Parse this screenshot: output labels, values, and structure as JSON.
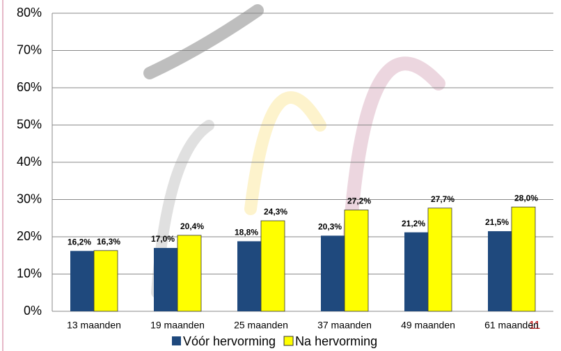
{
  "chart_data": {
    "type": "bar",
    "categories": [
      "13 maanden",
      "19 maanden",
      "25 maanden",
      "37 maanden",
      "49 maanden",
      "61 maanden"
    ],
    "series": [
      {
        "name": "Vóór hervorming",
        "color": "#1f497d",
        "values": [
          16.2,
          17.0,
          18.8,
          20.3,
          21.2,
          21.5
        ],
        "value_labels": [
          "16,2%",
          "17,0%",
          "18,8%",
          "20,3%",
          "21,2%",
          "21,5%"
        ]
      },
      {
        "name": "Na hervorming",
        "color": "#ffff00",
        "values": [
          16.3,
          20.4,
          24.3,
          27.2,
          27.7,
          28.0
        ],
        "value_labels": [
          "16,3%",
          "20,4%",
          "24,3%",
          "27,2%",
          "27,7%",
          "28,0%"
        ]
      }
    ],
    "ylim": [
      0,
      80
    ],
    "yticks": [
      {
        "value": 0,
        "label": "0%"
      },
      {
        "value": 10,
        "label": "10%"
      },
      {
        "value": 20,
        "label": "20%"
      },
      {
        "value": 30,
        "label": "30%"
      },
      {
        "value": 40,
        "label": "40%"
      },
      {
        "value": 50,
        "label": "50%"
      },
      {
        "value": 60,
        "label": "60%"
      },
      {
        "value": 70,
        "label": "70%"
      },
      {
        "value": 80,
        "label": "80%"
      }
    ],
    "grid": true,
    "legend": "bottom"
  },
  "page_number": "11"
}
